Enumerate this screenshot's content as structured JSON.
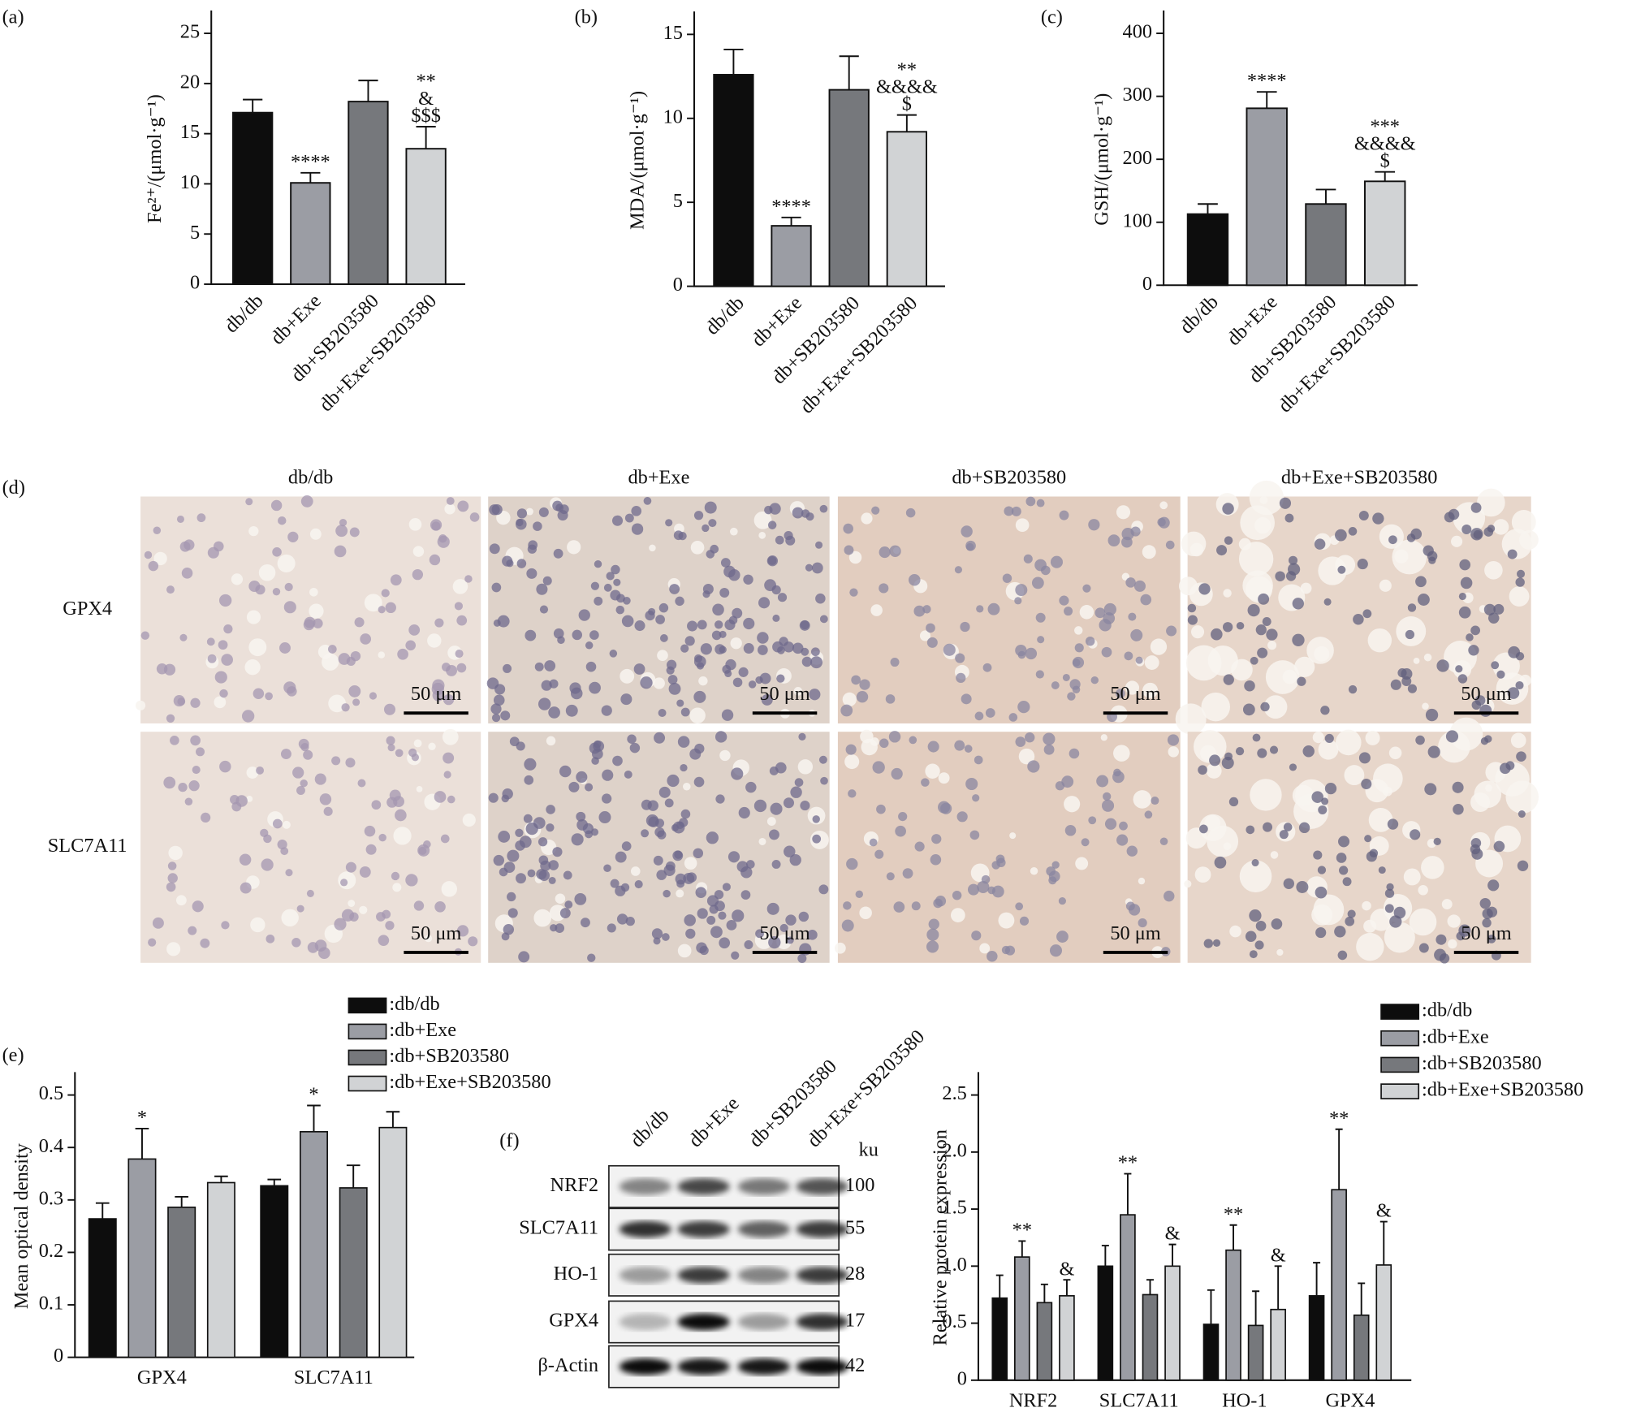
{
  "chart_data": [
    {
      "type": "bar",
      "panel": "(a)",
      "ylabel": "Fe²⁺/(μmol·g⁻¹)",
      "categories": [
        "db/db",
        "db+Exe",
        "db+SB203580",
        "db+Exe+SB203580"
      ],
      "values": [
        17.1,
        10.1,
        18.2,
        13.5
      ],
      "errors": [
        1.3,
        1.0,
        2.1,
        2.2
      ],
      "annotations": [
        null,
        [
          "****"
        ],
        null,
        [
          "**",
          "&",
          "$$$"
        ]
      ],
      "colors": [
        "#0d0d0d",
        "#9b9da4",
        "#76787c",
        "#d1d3d5"
      ],
      "ylim": [
        0,
        25
      ],
      "yticks": [
        0,
        5,
        10,
        15,
        20,
        25
      ]
    },
    {
      "type": "bar",
      "panel": "(b)",
      "ylabel": "MDA/(μmol·g⁻¹)",
      "categories": [
        "db/db",
        "db+Exe",
        "db+SB203580",
        "db+Exe+SB203580"
      ],
      "values": [
        12.6,
        3.6,
        11.7,
        9.2
      ],
      "errors": [
        1.5,
        0.5,
        2.0,
        1.0
      ],
      "annotations": [
        null,
        [
          "****"
        ],
        null,
        [
          "**",
          "&&&&",
          "$"
        ]
      ],
      "colors": [
        "#0d0d0d",
        "#9b9da4",
        "#76787c",
        "#d1d3d5"
      ],
      "ylim": [
        0,
        15
      ],
      "yticks": [
        0,
        5,
        10,
        15
      ]
    },
    {
      "type": "bar",
      "panel": "(c)",
      "ylabel": "GSH/(μmol·g⁻¹)",
      "categories": [
        "db/db",
        "db+Exe",
        "db+SB203580",
        "db+Exe+SB203580"
      ],
      "values": [
        113,
        281,
        129,
        165
      ],
      "errors": [
        16,
        26,
        23,
        15
      ],
      "annotations": [
        null,
        [
          "****"
        ],
        null,
        [
          "***",
          "&&&&",
          "$"
        ]
      ],
      "colors": [
        "#0d0d0d",
        "#9b9da4",
        "#76787c",
        "#d1d3d5"
      ],
      "ylim": [
        0,
        400
      ],
      "yticks": [
        0,
        100,
        200,
        300,
        400
      ]
    },
    {
      "type": "grouped-bar",
      "panel": "(e)",
      "ylabel": "Mean optical density",
      "categories": [
        "GPX4",
        "SLC7A11"
      ],
      "series": [
        {
          "name": ":db/db",
          "color": "#0d0d0d",
          "values": [
            0.264,
            0.327
          ],
          "errors": [
            0.03,
            0.012
          ],
          "annotations": [
            null,
            null
          ]
        },
        {
          "name": ":db+Exe",
          "color": "#9b9da4",
          "values": [
            0.378,
            0.43
          ],
          "errors": [
            0.058,
            0.05
          ],
          "annotations": [
            [
              "*"
            ],
            [
              "*"
            ]
          ]
        },
        {
          "name": ":db+SB203580",
          "color": "#76787c",
          "values": [
            0.286,
            0.323
          ],
          "errors": [
            0.02,
            0.043
          ],
          "annotations": [
            null,
            null
          ]
        },
        {
          "name": ":db+Exe+SB203580",
          "color": "#d1d3d5",
          "values": [
            0.333,
            0.438
          ],
          "errors": [
            0.012,
            0.03
          ],
          "annotations": [
            null,
            null
          ]
        }
      ],
      "ylim": [
        0,
        0.5
      ],
      "yticks": [
        0,
        0.1,
        0.2,
        0.3,
        0.4,
        0.5
      ]
    },
    {
      "type": "grouped-bar",
      "ylabel": "Relative protein expression",
      "categories": [
        "NRF2",
        "SLC7A11",
        "HO-1",
        "GPX4"
      ],
      "series": [
        {
          "name": ":db/db",
          "color": "#0d0d0d",
          "values": [
            0.72,
            1.0,
            0.49,
            0.74
          ],
          "errors": [
            0.2,
            0.18,
            0.3,
            0.29
          ],
          "annotations": [
            null,
            null,
            null,
            null
          ]
        },
        {
          "name": ":db+Exe",
          "color": "#9b9da4",
          "values": [
            1.08,
            1.45,
            1.14,
            1.67
          ],
          "errors": [
            0.14,
            0.36,
            0.22,
            0.53
          ],
          "annotations": [
            [
              "**"
            ],
            [
              "**"
            ],
            [
              "**"
            ],
            [
              "**"
            ]
          ]
        },
        {
          "name": ":db+SB203580",
          "color": "#76787c",
          "values": [
            0.68,
            0.75,
            0.48,
            0.57
          ],
          "errors": [
            0.16,
            0.13,
            0.3,
            0.28
          ],
          "annotations": [
            null,
            null,
            null,
            null
          ]
        },
        {
          "name": ":db+Exe+SB203580",
          "color": "#d1d3d5",
          "values": [
            0.74,
            1.0,
            0.62,
            1.01
          ],
          "errors": [
            0.14,
            0.19,
            0.38,
            0.38
          ],
          "annotations": [
            [
              "&"
            ],
            [
              "&"
            ],
            [
              "&"
            ],
            [
              "&"
            ]
          ]
        }
      ],
      "ylim": [
        0,
        2.5
      ],
      "yticks": [
        0,
        0.5,
        {
          "value": 1,
          "label": "1.0"
        },
        1.5,
        {
          "value": 2,
          "label": "2.0"
        },
        2.5
      ]
    }
  ],
  "histology": {
    "panel": "(d)",
    "columns": [
      "db/db",
      "db+Exe",
      "db+SB203580",
      "db+Exe+SB203580"
    ],
    "rows": [
      "GPX4",
      "SLC7A11"
    ],
    "scale_bar": "50 μm"
  },
  "blot": {
    "panel": "(f)",
    "lanes": [
      "db/db",
      "db+Exe",
      "db+SB203580",
      "db+Exe+SB203580"
    ],
    "unit": "ku",
    "rows": [
      {
        "label": "NRF2",
        "size": 100
      },
      {
        "label": "SLC7A11",
        "size": 55
      },
      {
        "label": "HO-1",
        "size": 28
      },
      {
        "label": "GPX4",
        "size": 17
      },
      {
        "label": "β-Actin",
        "size": 42
      }
    ]
  }
}
